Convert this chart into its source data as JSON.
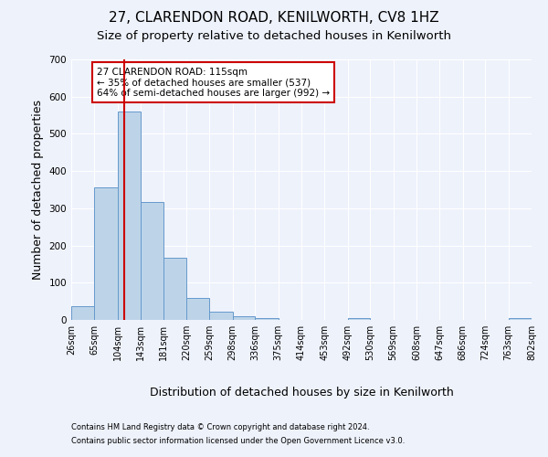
{
  "title": "27, CLARENDON ROAD, KENILWORTH, CV8 1HZ",
  "subtitle": "Size of property relative to detached houses in Kenilworth",
  "xlabel": "Distribution of detached houses by size in Kenilworth",
  "ylabel": "Number of detached properties",
  "footnote1": "Contains HM Land Registry data © Crown copyright and database right 2024.",
  "footnote2": "Contains public sector information licensed under the Open Government Licence v3.0.",
  "bin_edges": [
    26,
    65,
    104,
    143,
    181,
    220,
    259,
    298,
    336,
    375,
    414,
    453,
    492,
    530,
    569,
    608,
    647,
    686,
    724,
    763,
    802
  ],
  "bar_heights": [
    38,
    357,
    560,
    316,
    168,
    60,
    22,
    11,
    6,
    0,
    0,
    0,
    5,
    0,
    0,
    0,
    0,
    0,
    0,
    5
  ],
  "bar_color": "#bdd4e8",
  "bar_edgecolor": "#6699cc",
  "vline_x": 115,
  "vline_color": "#cc0000",
  "annotation_title": "27 CLARENDON ROAD: 115sqm",
  "annotation_line1": "← 35% of detached houses are smaller (537)",
  "annotation_line2": "64% of semi-detached houses are larger (992) →",
  "annotation_box_color": "#cc0000",
  "ylim": [
    0,
    700
  ],
  "yticks": [
    0,
    100,
    200,
    300,
    400,
    500,
    600,
    700
  ],
  "background_color": "#eef2fb",
  "grid_color": "#ffffff",
  "title_fontsize": 11,
  "subtitle_fontsize": 9.5,
  "axis_label_fontsize": 9,
  "tick_fontsize": 7,
  "annotation_fontsize": 7.5
}
